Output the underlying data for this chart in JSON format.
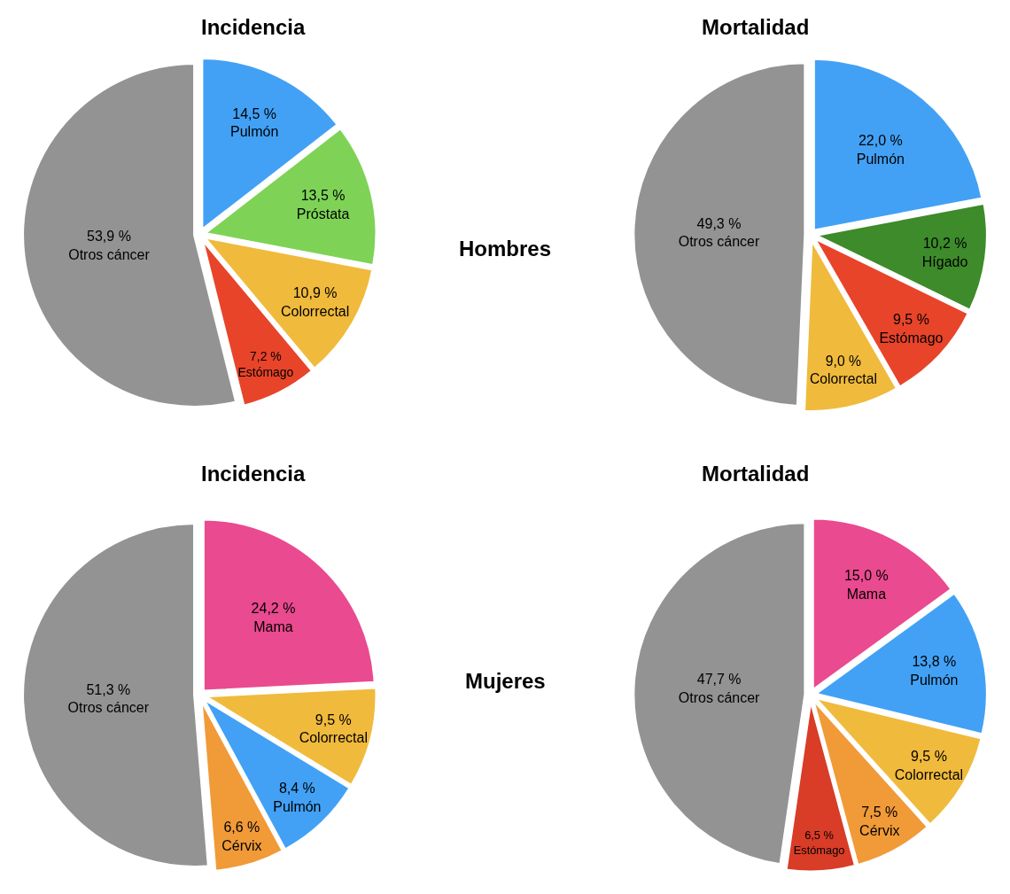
{
  "chart_data": [
    {
      "type": "pie",
      "title": "Incidencia",
      "annotations": [
        "Hombres"
      ],
      "legend": false,
      "categories": [
        "Pulmón",
        "Próstata",
        "Colorrectal",
        "Estómago",
        "Otros cáncer"
      ],
      "values": [
        14.5,
        13.5,
        10.9,
        7.2,
        53.9
      ],
      "value_labels": [
        "14,5 %",
        "13,5 %",
        "10,9 %",
        "7,2 %",
        "53,9 %"
      ],
      "colors": [
        "#42a1f5",
        "#7ed356",
        "#f0ba3c",
        "#e8442a",
        "#939393"
      ]
    },
    {
      "type": "pie",
      "title": "Mortalidad",
      "legend": false,
      "categories": [
        "Pulmón",
        "Hígado",
        "Estómago",
        "Colorrectal",
        "Otros cáncer"
      ],
      "values": [
        22.0,
        10.2,
        9.5,
        9.0,
        49.3
      ],
      "value_labels": [
        "22,0 %",
        "10,2 %",
        "9,5 %",
        "9,0 %",
        "49,3 %"
      ],
      "colors": [
        "#42a1f5",
        "#3d8b2a",
        "#e8442a",
        "#f0ba3c",
        "#939393"
      ]
    },
    {
      "type": "pie",
      "title": "Incidencia",
      "annotations": [
        "Mujeres"
      ],
      "legend": false,
      "categories": [
        "Mama",
        "Colorrectal",
        "Pulmón",
        "Cérvix",
        "Otros cáncer"
      ],
      "values": [
        24.2,
        9.5,
        8.4,
        6.6,
        51.3
      ],
      "value_labels": [
        "24,2 %",
        "9,5 %",
        "8,4 %",
        "6,6 %",
        "51,3 %"
      ],
      "colors": [
        "#ea4a8f",
        "#f0ba3c",
        "#42a1f5",
        "#f19a38",
        "#939393"
      ]
    },
    {
      "type": "pie",
      "title": "Mortalidad",
      "legend": false,
      "categories": [
        "Mama",
        "Pulmón",
        "Colorrectal",
        "Cérvix",
        "Estómago",
        "Otros cáncer"
      ],
      "values": [
        15.0,
        13.8,
        9.5,
        7.5,
        6.5,
        47.7
      ],
      "value_labels": [
        "15,0 %",
        "13,8 %",
        "9,5 %",
        "7,5 %",
        "6,5 %",
        "47,7 %"
      ],
      "colors": [
        "#ea4a8f",
        "#42a1f5",
        "#f0ba3c",
        "#f19a38",
        "#d93c27",
        "#939393"
      ]
    }
  ]
}
